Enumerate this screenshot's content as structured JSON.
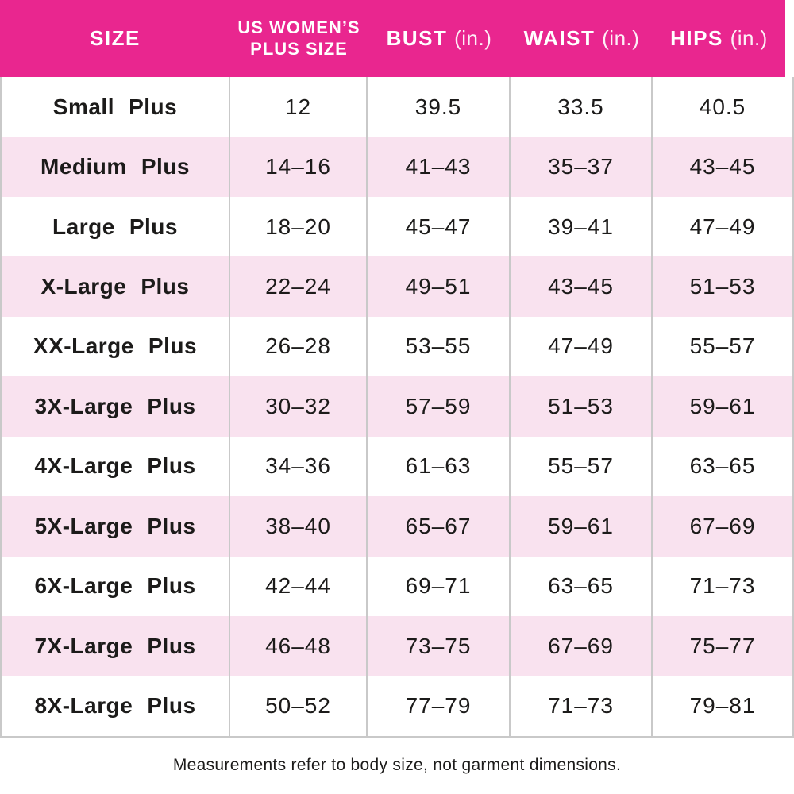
{
  "chart_data": {
    "type": "table",
    "columns": [
      "SIZE",
      "US WOMEN'S PLUS SIZE",
      "BUST (in.)",
      "WAIST (in.)",
      "HIPS (in.)"
    ],
    "rows": [
      [
        "Small Plus",
        "12",
        "39.5",
        "33.5",
        "40.5"
      ],
      [
        "Medium Plus",
        "14–16",
        "41–43",
        "35–37",
        "43–45"
      ],
      [
        "Large Plus",
        "18–20",
        "45–47",
        "39–41",
        "47–49"
      ],
      [
        "X-Large Plus",
        "22–24",
        "49–51",
        "43–45",
        "51–53"
      ],
      [
        "XX-Large Plus",
        "26–28",
        "53–55",
        "47–49",
        "55–57"
      ],
      [
        "3X-Large Plus",
        "30–32",
        "57–59",
        "51–53",
        "59–61"
      ],
      [
        "4X-Large Plus",
        "34–36",
        "61–63",
        "55–57",
        "63–65"
      ],
      [
        "5X-Large Plus",
        "38–40",
        "65–67",
        "59–61",
        "67–69"
      ],
      [
        "6X-Large Plus",
        "42–44",
        "69–71",
        "63–65",
        "71–73"
      ],
      [
        "7X-Large Plus",
        "46–48",
        "73–75",
        "67–69",
        "75–77"
      ],
      [
        "8X-Large Plus",
        "50–52",
        "77–79",
        "71–73",
        "79–81"
      ]
    ],
    "footnote": "Measurements refer to body size, not garment dimensions."
  },
  "header": {
    "size": "SIZE",
    "us_line1": "US WOMEN’S",
    "us_line2": "PLUS SIZE",
    "bust": "BUST",
    "waist": "WAIST",
    "hips": "HIPS",
    "unit": "(in.)"
  },
  "colors": {
    "header_bg": "#e9268f",
    "header_text": "#ffffff",
    "row_alt_bg": "#f9e2ef",
    "row_bg": "#ffffff",
    "border": "#c9c9c9",
    "text": "#1c1b1a"
  }
}
